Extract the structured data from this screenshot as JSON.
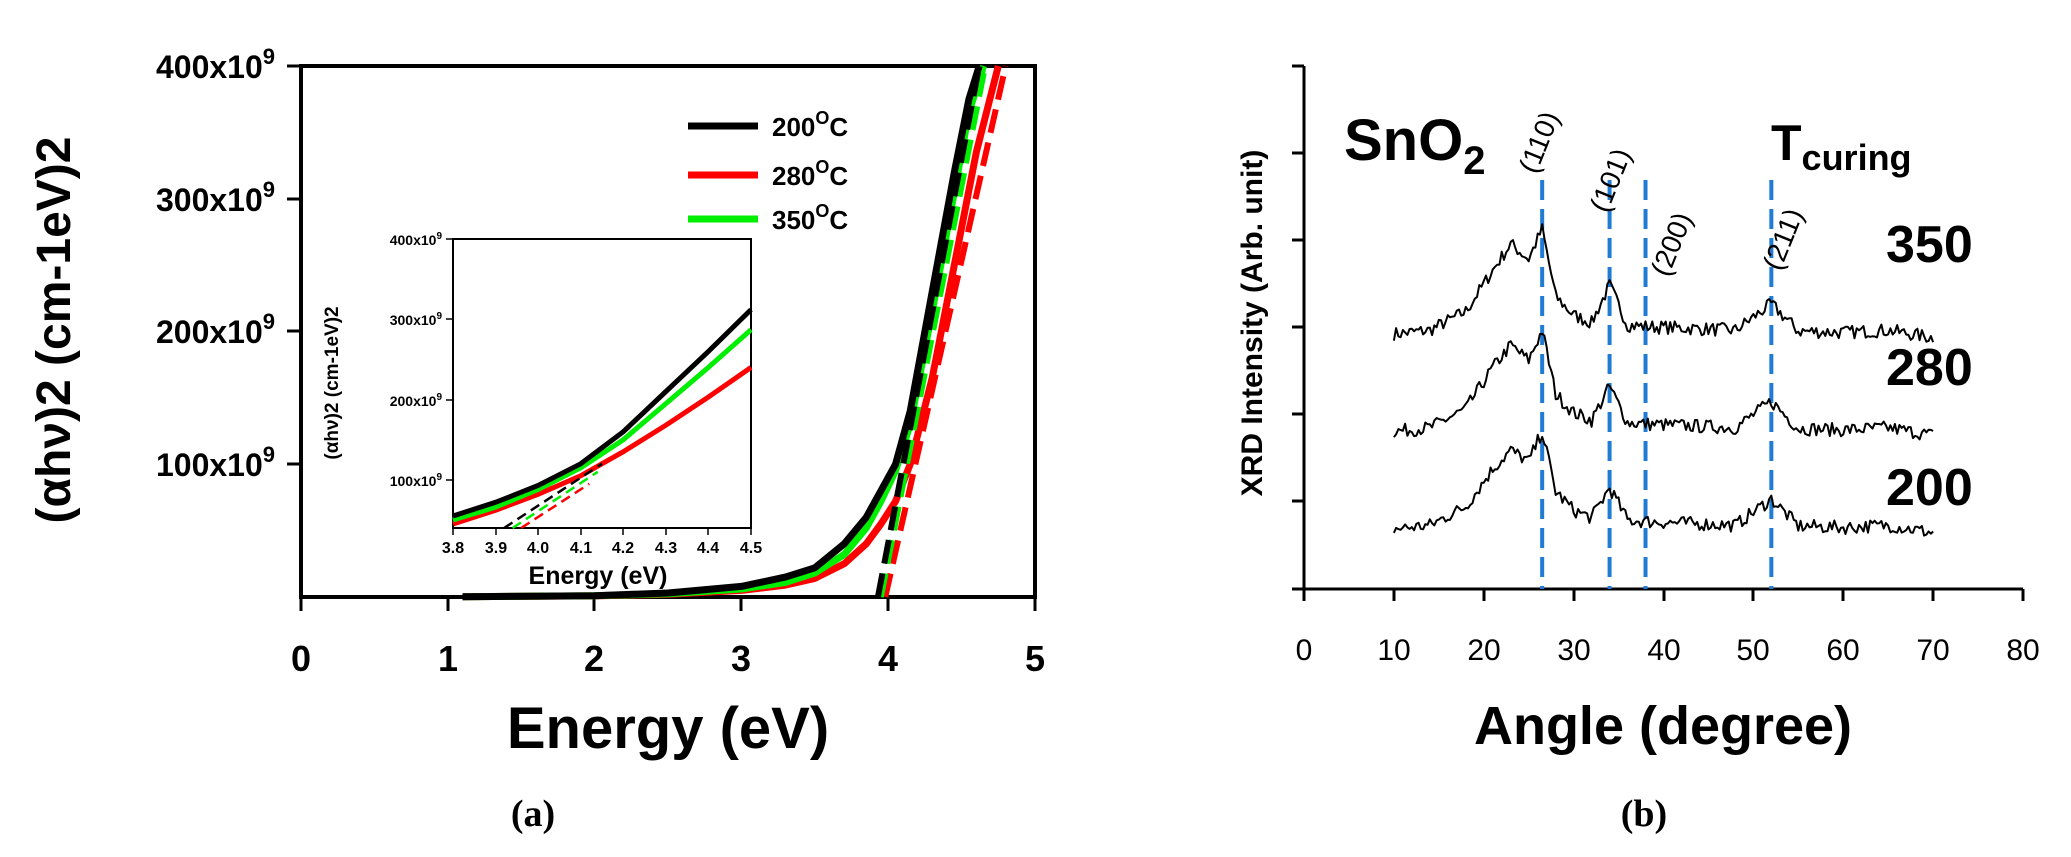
{
  "chart_data": [
    {
      "panel_label": "(a)",
      "type": "line",
      "xlabel": "Energy (eV)",
      "ylabel": "(αhν)2 (cm-1eV)2",
      "xlim": [
        0,
        5
      ],
      "ylim": [
        0,
        400000000000.0
      ],
      "xticks": [
        "0",
        "1",
        "2",
        "3",
        "4",
        "5"
      ],
      "yticks": [
        {
          "value": 100000000000.0,
          "base": "100x10",
          "exp": "9"
        },
        {
          "value": 200000000000.0,
          "base": "200x10",
          "exp": "9"
        },
        {
          "value": 300000000000.0,
          "base": "300x10",
          "exp": "9"
        },
        {
          "value": 400000000000.0,
          "base": "400x10",
          "exp": "9"
        }
      ],
      "legend_position": "top-right",
      "series": [
        {
          "name": "200",
          "unit_sup": "O",
          "unit": "C",
          "color": "#000000",
          "x": [
            1.1,
            2.0,
            2.5,
            3.0,
            3.3,
            3.5,
            3.7,
            3.85,
            3.95,
            4.05,
            4.15,
            4.3,
            4.45,
            4.55,
            4.62
          ],
          "y": [
            200000000.0,
            1000000000.0,
            3000000000.0,
            8000000000.0,
            15000000000.0,
            22000000000.0,
            40000000000.0,
            60000000000.0,
            80000000000.0,
            100000000000.0,
            140000000000.0,
            230000000000.0,
            320000000000.0,
            375000000000.0,
            400000000000.0
          ],
          "fit": {
            "x": [
              3.93,
              4.62
            ],
            "y": [
              0,
              400000000000.0
            ]
          }
        },
        {
          "name": "280",
          "unit_sup": "O",
          "unit": "C",
          "color": "#ff0000",
          "x": [
            1.1,
            2.0,
            2.5,
            3.0,
            3.3,
            3.5,
            3.7,
            3.85,
            3.95,
            4.05,
            4.15,
            4.3,
            4.45,
            4.6,
            4.75
          ],
          "y": [
            200000000.0,
            800000000.0,
            2000000000.0,
            5000000000.0,
            9000000000.0,
            14000000000.0,
            25000000000.0,
            40000000000.0,
            55000000000.0,
            72000000000.0,
            100000000000.0,
            165000000000.0,
            250000000000.0,
            335000000000.0,
            400000000000.0
          ],
          "fit": {
            "x": [
              3.98,
              4.8
            ],
            "y": [
              0,
              400000000000.0
            ]
          }
        },
        {
          "name": "350",
          "unit_sup": "O",
          "unit": "C",
          "color": "#00ee00",
          "x": [
            1.1,
            2.0,
            2.5,
            3.0,
            3.3,
            3.5,
            3.7,
            3.85,
            3.95,
            4.05,
            4.15,
            4.3,
            4.45,
            4.55,
            4.65
          ],
          "y": [
            200000000.0,
            900000000.0,
            2500000000.0,
            6000000000.0,
            11000000000.0,
            18000000000.0,
            32000000000.0,
            52000000000.0,
            72000000000.0,
            95000000000.0,
            130000000000.0,
            215000000000.0,
            305000000000.0,
            365000000000.0,
            400000000000.0
          ],
          "fit": {
            "x": [
              3.95,
              4.66
            ],
            "y": [
              0,
              400000000000.0
            ]
          }
        }
      ],
      "inset": {
        "xlabel": "Energy (eV)",
        "ylabel": "(αhν)2 (cm-1eV)2",
        "xlim": [
          3.8,
          4.5
        ],
        "ylim": [
          40000000000.0,
          400000000000.0
        ],
        "xticks": [
          "3.8",
          "3.9",
          "4.0",
          "4.1",
          "4.2",
          "4.3",
          "4.4",
          "4.5"
        ],
        "yticks": [
          {
            "value": 100000000000.0,
            "base": "100x10",
            "exp": "9"
          },
          {
            "value": 200000000000.0,
            "base": "200x10",
            "exp": "9"
          },
          {
            "value": 300000000000.0,
            "base": "300x10",
            "exp": "9"
          },
          {
            "value": 400000000000.0,
            "base": "400x10",
            "exp": "9"
          }
        ],
        "series": [
          {
            "name": "200",
            "color": "#000000",
            "x": [
              3.8,
              3.9,
              4.0,
              4.1,
              4.2,
              4.3,
              4.4,
              4.5
            ],
            "y": [
              55000000000.0,
              72000000000.0,
              93000000000.0,
              120000000000.0,
              160000000000.0,
              210000000000.0,
              260000000000.0,
              312000000000.0
            ],
            "fit": {
              "x": [
                3.92,
                4.15
              ],
              "y": [
                40000000000.0,
                120000000000.0
              ]
            }
          },
          {
            "name": "280",
            "color": "#ff0000",
            "x": [
              3.8,
              3.9,
              4.0,
              4.1,
              4.2,
              4.3,
              4.4,
              4.5
            ],
            "y": [
              45000000000.0,
              62000000000.0,
              82000000000.0,
              105000000000.0,
              135000000000.0,
              168000000000.0,
              203000000000.0,
              240000000000.0
            ],
            "fit": {
              "x": [
                3.96,
                4.12
              ],
              "y": [
                40000000000.0,
                95000000000.0
              ]
            }
          },
          {
            "name": "350",
            "color": "#00ee00",
            "x": [
              3.8,
              3.9,
              4.0,
              4.1,
              4.2,
              4.3,
              4.4,
              4.5
            ],
            "y": [
              50000000000.0,
              66000000000.0,
              88000000000.0,
              115000000000.0,
              150000000000.0,
              195000000000.0,
              240000000000.0,
              287000000000.0
            ],
            "fit": {
              "x": [
                3.94,
                4.14
              ],
              "y": [
                40000000000.0,
                110000000000.0
              ]
            }
          }
        ]
      }
    },
    {
      "panel_label": "(b)",
      "type": "line",
      "title": "SnO",
      "title_sub": "2",
      "xlabel": "Angle (degree)",
      "ylabel": "XRD Intensity (Arb. unit)",
      "xlim": [
        0,
        80
      ],
      "xticks": [
        "0",
        "10",
        "20",
        "30",
        "40",
        "50",
        "60",
        "70",
        "80"
      ],
      "legend_title": "T",
      "legend_title_sub": "curing",
      "peaks": [
        {
          "label": "(110)",
          "x": 26.5
        },
        {
          "label": "(101)",
          "x": 34
        },
        {
          "label": "(200)",
          "x": 38
        },
        {
          "label": "(211)",
          "x": 52
        }
      ],
      "series": [
        {
          "name": "350",
          "baseline_level": 3.4,
          "x": [
            10,
            14,
            18,
            21,
            23,
            25,
            26.5,
            28,
            30,
            32,
            34,
            36,
            38,
            42,
            48,
            52,
            55,
            60,
            65,
            70
          ],
          "y": [
            0,
            0.05,
            0.3,
            0.85,
            1.2,
            1.0,
            1.4,
            0.5,
            0.25,
            0.15,
            0.65,
            0.12,
            0.1,
            0.08,
            0.05,
            0.4,
            0.04,
            0.02,
            0.05,
            -0.05
          ]
        },
        {
          "name": "280",
          "baseline_level": 2.1,
          "x": [
            10,
            14,
            18,
            21,
            23,
            25,
            26.5,
            28,
            30,
            32,
            34,
            36,
            38,
            42,
            48,
            52,
            55,
            60,
            65,
            70
          ],
          "y": [
            0,
            0.05,
            0.3,
            0.85,
            1.15,
            0.95,
            1.35,
            0.5,
            0.25,
            0.15,
            0.6,
            0.12,
            0.1,
            0.08,
            0.05,
            0.4,
            0.04,
            0.02,
            0.05,
            -0.05
          ]
        },
        {
          "name": "200",
          "baseline_level": 0.8,
          "x": [
            10,
            14,
            18,
            21,
            23,
            25,
            26.5,
            28,
            30,
            32,
            34,
            36,
            38,
            42,
            48,
            52,
            55,
            60,
            65,
            70
          ],
          "y": [
            0,
            0.05,
            0.3,
            0.8,
            1.05,
            0.9,
            1.3,
            0.5,
            0.25,
            0.15,
            0.55,
            0.12,
            0.1,
            0.08,
            0.05,
            0.4,
            0.04,
            0.02,
            0.05,
            -0.05
          ]
        }
      ]
    }
  ]
}
